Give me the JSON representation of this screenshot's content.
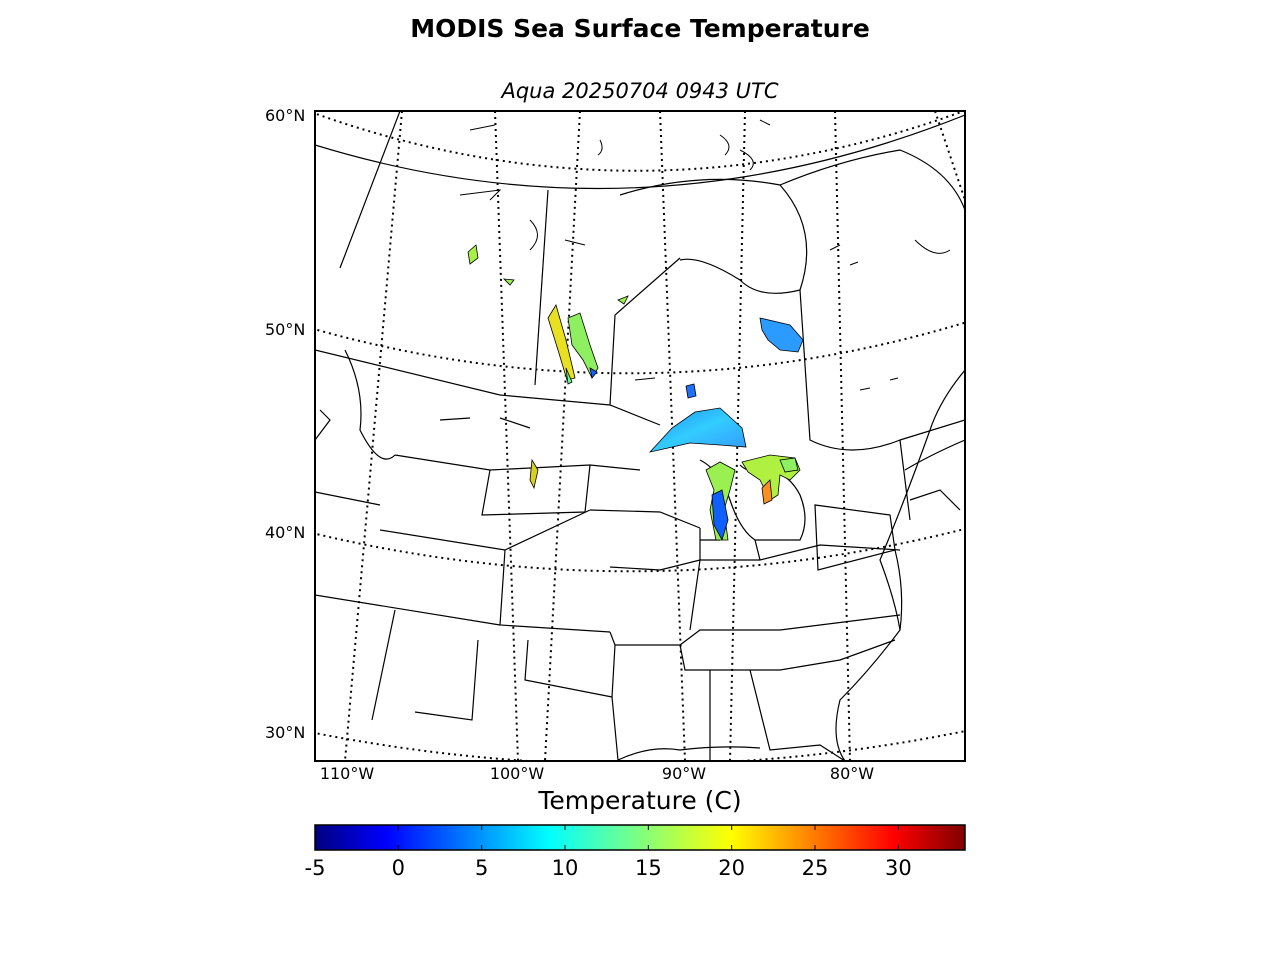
{
  "title": "MODIS Sea Surface Temperature",
  "subtitle": "Aqua 20250704 0943 UTC",
  "map": {
    "lat_labels": [
      "60°N",
      "50°N",
      "40°N",
      "30°N"
    ],
    "lon_labels": [
      "110°W",
      "100°W",
      "90°W",
      "80°W"
    ],
    "graticule_style": "dotted"
  },
  "colorbar": {
    "label": "Temperature (C)",
    "colormap": "jet",
    "min": -5,
    "max": 34,
    "ticks": [
      "-5",
      "0",
      "5",
      "10",
      "15",
      "20",
      "25",
      "30"
    ]
  },
  "colors": {
    "jet_stops": [
      "#00007f",
      "#0000ff",
      "#007fff",
      "#00ffff",
      "#7fff7f",
      "#ffff00",
      "#ff7f00",
      "#ff0000",
      "#7f0000"
    ]
  }
}
